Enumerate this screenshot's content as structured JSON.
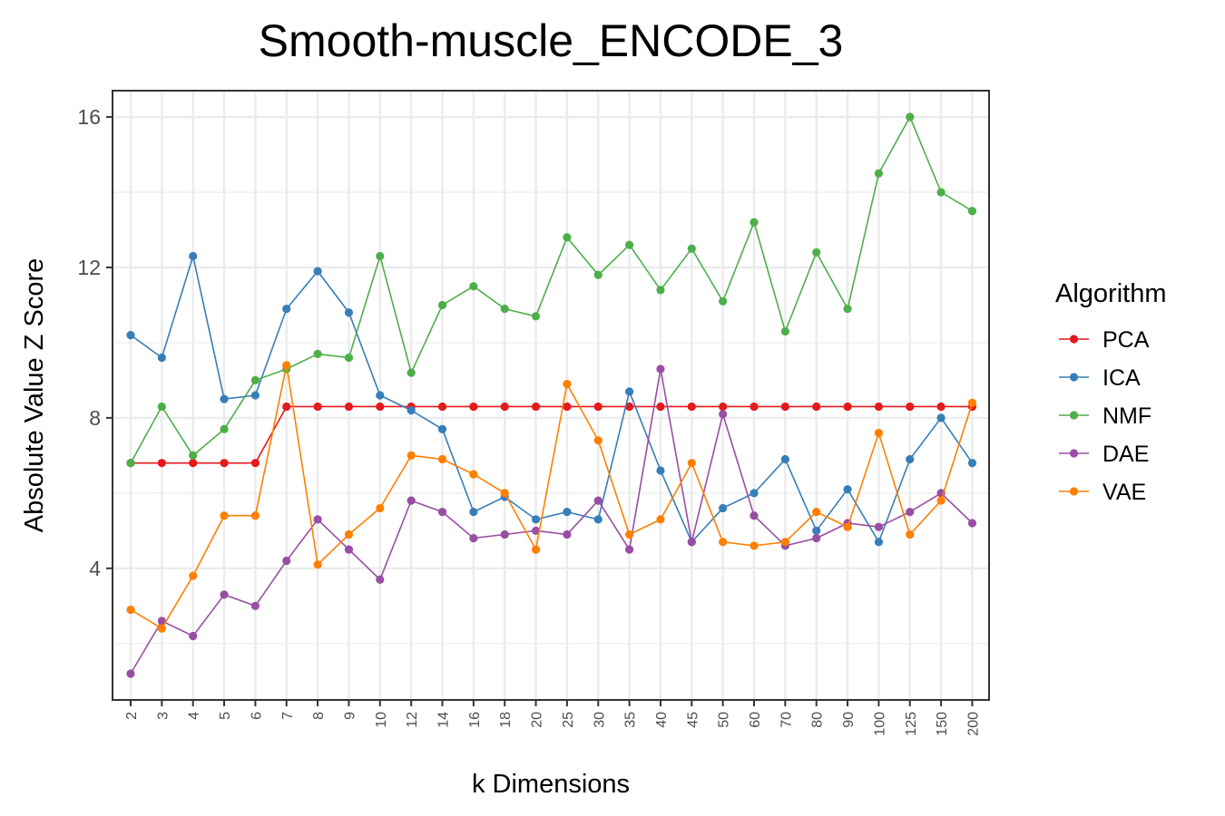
{
  "chart_data": {
    "type": "line",
    "title": "Smooth-muscle_ENCODE_3",
    "xlabel": "k Dimensions",
    "ylabel": "Absolute Value Z Score",
    "x_scale": "categorical",
    "ylim": [
      0.5,
      16.7
    ],
    "yticks": [
      4,
      8,
      12,
      16
    ],
    "grid": true,
    "legend_title": "Algorithm",
    "legend_position": "right",
    "categories": [
      "2",
      "3",
      "4",
      "5",
      "6",
      "7",
      "8",
      "9",
      "10",
      "12",
      "14",
      "16",
      "18",
      "20",
      "25",
      "30",
      "35",
      "40",
      "45",
      "50",
      "60",
      "70",
      "80",
      "90",
      "100",
      "125",
      "150",
      "200"
    ],
    "series": [
      {
        "name": "PCA",
        "color": "#e41a1c",
        "values": [
          6.8,
          6.8,
          6.8,
          6.8,
          6.8,
          8.3,
          8.3,
          8.3,
          8.3,
          8.3,
          8.3,
          8.3,
          8.3,
          8.3,
          8.3,
          8.3,
          8.3,
          8.3,
          8.3,
          8.3,
          8.3,
          8.3,
          8.3,
          8.3,
          8.3,
          8.3,
          8.3,
          8.3
        ]
      },
      {
        "name": "ICA",
        "color": "#377eb8",
        "values": [
          10.2,
          9.6,
          12.3,
          8.5,
          8.6,
          10.9,
          11.9,
          10.8,
          8.6,
          8.2,
          7.7,
          5.5,
          5.9,
          5.3,
          5.5,
          5.3,
          8.7,
          6.6,
          4.7,
          5.6,
          6.0,
          6.9,
          5.0,
          6.1,
          4.7,
          6.9,
          8.0,
          6.8
        ]
      },
      {
        "name": "NMF",
        "color": "#4daf4a",
        "values": [
          6.8,
          8.3,
          7.0,
          7.7,
          9.0,
          9.3,
          9.7,
          9.6,
          12.3,
          9.2,
          11.0,
          11.5,
          10.9,
          10.7,
          12.8,
          11.8,
          12.6,
          11.4,
          12.5,
          11.1,
          13.2,
          10.3,
          12.4,
          10.9,
          14.5,
          16.0,
          14.0,
          13.5
        ]
      },
      {
        "name": "DAE",
        "color": "#984ea3",
        "values": [
          1.2,
          2.6,
          2.2,
          3.3,
          3.0,
          4.2,
          5.3,
          4.5,
          3.7,
          5.8,
          5.5,
          4.8,
          4.9,
          5.0,
          4.9,
          5.8,
          4.5,
          9.3,
          4.7,
          8.1,
          5.4,
          4.6,
          4.8,
          5.2,
          5.1,
          5.5,
          6.0,
          5.2
        ]
      },
      {
        "name": "VAE",
        "color": "#ff7f00",
        "values": [
          2.9,
          2.4,
          3.8,
          5.4,
          5.4,
          9.4,
          4.1,
          4.9,
          5.6,
          7.0,
          6.9,
          6.5,
          6.0,
          4.5,
          8.9,
          7.4,
          4.9,
          5.3,
          6.8,
          4.7,
          4.6,
          4.7,
          5.5,
          5.1,
          7.6,
          4.9,
          5.8,
          8.4
        ]
      }
    ]
  }
}
